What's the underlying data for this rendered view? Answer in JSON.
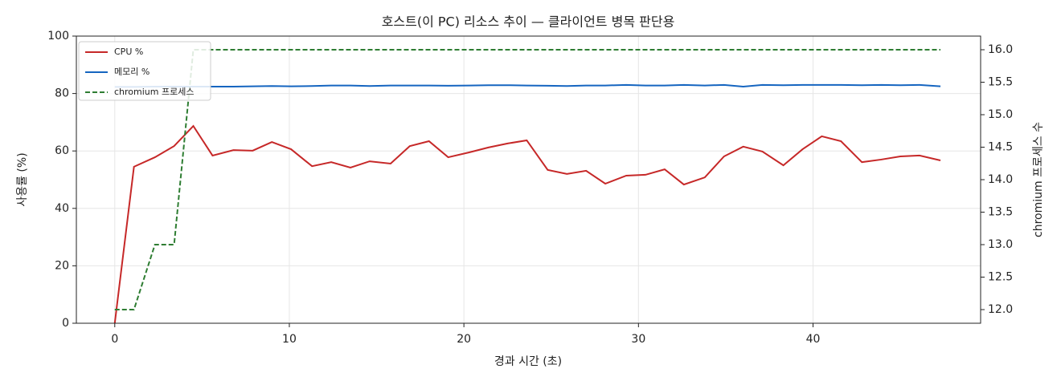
{
  "chart_data": {
    "type": "line",
    "title": "호스트(이 PC) 리소스 추이 — 클라이언트 병목 판단용",
    "x_label": "경과 시간 (초)",
    "y_label": "사용률 (%)",
    "y2_label": "chromium 프로세스 수",
    "x": [
      0,
      1.1,
      2.3,
      3.4,
      4.5,
      5.6,
      6.8,
      7.9,
      9.0,
      10.1,
      11.3,
      12.4,
      13.5,
      14.6,
      15.8,
      16.9,
      18.0,
      19.1,
      20.3,
      21.4,
      22.5,
      23.6,
      24.8,
      25.9,
      27.0,
      28.1,
      29.3,
      30.4,
      31.5,
      32.6,
      33.8,
      34.9,
      36.0,
      37.1,
      38.3,
      39.4,
      40.5,
      41.6,
      42.8,
      43.9,
      45.0,
      46.1,
      47.3
    ],
    "series": [
      {
        "name": "CPU %",
        "color": "#c62828",
        "style": "solid",
        "values": [
          0,
          54.5,
          57.8,
          61.7,
          68.7,
          58.4,
          60.3,
          60.1,
          63.1,
          60.6,
          54.7,
          56.1,
          54.2,
          56.4,
          55.6,
          61.7,
          63.4,
          57.8,
          59.5,
          61.2,
          62.6,
          63.7,
          53.4,
          52.0,
          53.1,
          48.6,
          51.4,
          51.7,
          53.6,
          48.3,
          50.8,
          58.1,
          61.5,
          59.8,
          55.0,
          60.6,
          65.1,
          63.4,
          56.1,
          57.0,
          58.1,
          58.4,
          56.7
        ]
      },
      {
        "name": "메모리 %",
        "color": "#1565c0",
        "style": "solid",
        "values": [
          82.3,
          82.3,
          82.4,
          82.4,
          82.4,
          82.4,
          82.4,
          82.5,
          82.6,
          82.5,
          82.6,
          82.8,
          82.8,
          82.6,
          82.8,
          82.8,
          82.8,
          82.7,
          82.8,
          82.9,
          82.9,
          82.8,
          82.7,
          82.6,
          82.8,
          82.8,
          83.0,
          82.8,
          82.8,
          83.0,
          82.8,
          83.0,
          82.4,
          83.0,
          82.9,
          83.0,
          83.0,
          83.0,
          82.9,
          83.0,
          82.9,
          83.0,
          82.5
        ]
      },
      {
        "name": "chromium 프로세스",
        "color": "#2e7d32",
        "style": "dashed",
        "axis": "y2",
        "values": [
          12,
          12,
          13,
          13,
          16,
          16,
          16,
          16,
          16,
          16,
          16,
          16,
          16,
          16,
          16,
          16,
          16,
          16,
          16,
          16,
          16,
          16,
          16,
          16,
          16,
          16,
          16,
          16,
          16,
          16,
          16,
          16,
          16,
          16,
          16,
          16,
          16,
          16,
          16,
          16,
          16,
          16,
          16
        ]
      }
    ],
    "xlim": [
      -2.2,
      49.6
    ],
    "xticks": [
      0,
      10,
      20,
      30,
      40
    ],
    "ylim": [
      0,
      100
    ],
    "yticks": [
      0,
      20,
      40,
      60,
      80,
      100
    ],
    "y2lim": [
      11.79,
      16.21
    ],
    "y2ticks": [
      {
        "value": 12,
        "label": "12.0"
      },
      {
        "value": 12.5,
        "label": "12.5"
      },
      {
        "value": 13,
        "label": "13.0"
      },
      {
        "value": 13.5,
        "label": "13.5"
      },
      {
        "value": 14,
        "label": "14.0"
      },
      {
        "value": 14.5,
        "label": "14.5"
      },
      {
        "value": 15,
        "label": "15.0"
      },
      {
        "value": 15.5,
        "label": "15.5"
      },
      {
        "value": 16,
        "label": "16.0"
      }
    ],
    "grid": true,
    "legend": "upper-left"
  }
}
